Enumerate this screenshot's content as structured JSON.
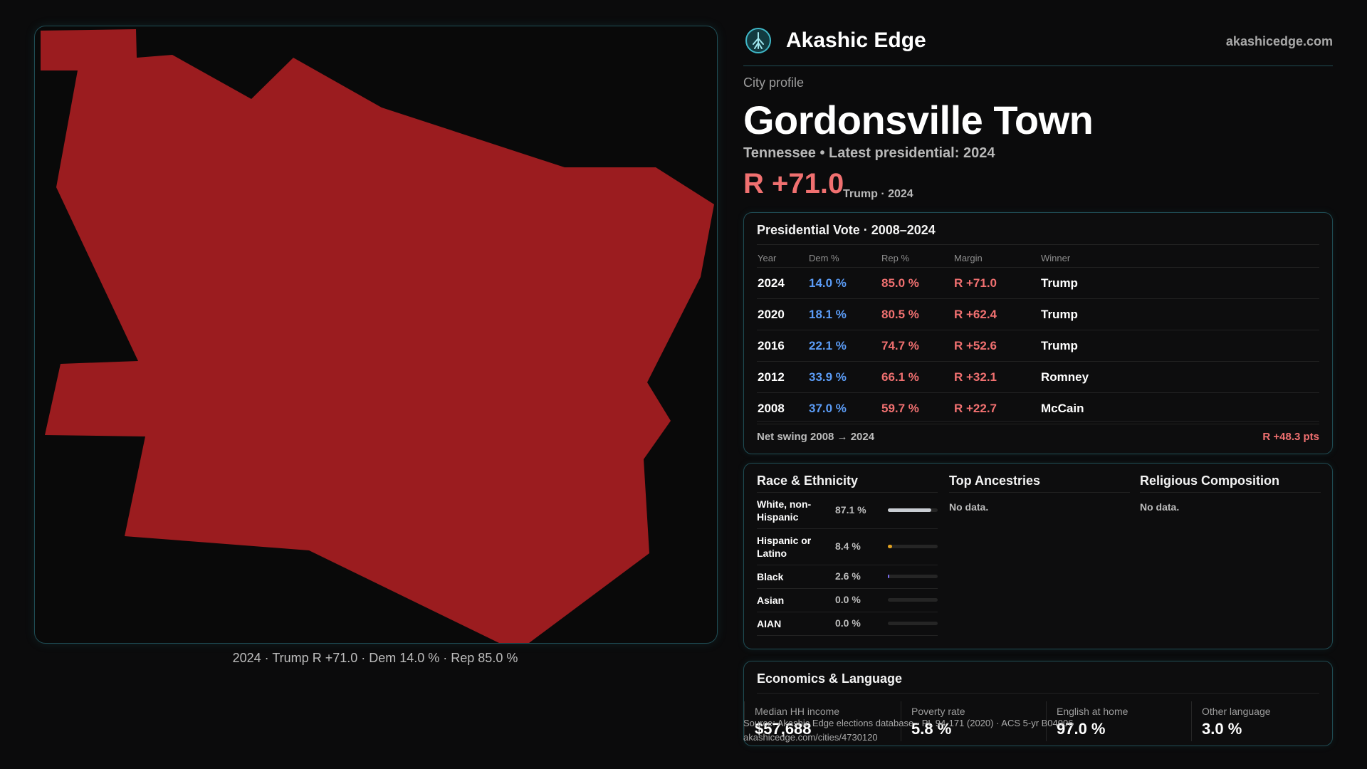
{
  "header": {
    "brand": "Akashic Edge",
    "site": "akashicedge.com",
    "logo_icon": "tree-globe-logo"
  },
  "profile": {
    "eyebrow": "City profile",
    "city": "Gordonsville Town",
    "subline": "Tennessee • Latest presidential: 2024",
    "margin": "R +71.0",
    "margin_note": "Trump · 2024"
  },
  "map": {
    "fill_color": "#9b1c1f",
    "caption": "2024 · Trump R +71.0 · Dem 14.0 % · Rep 85.0 %"
  },
  "vote": {
    "title": "Presidential Vote · 2008–2024",
    "columns": [
      "Year",
      "Dem %",
      "Rep %",
      "Margin",
      "Winner"
    ],
    "rows": [
      {
        "year": "2024",
        "dem": "14.0 %",
        "rep": "85.0 %",
        "margin": "R +71.0",
        "winner": "Trump"
      },
      {
        "year": "2020",
        "dem": "18.1 %",
        "rep": "80.5 %",
        "margin": "R +62.4",
        "winner": "Trump"
      },
      {
        "year": "2016",
        "dem": "22.1 %",
        "rep": "74.7 %",
        "margin": "R +52.6",
        "winner": "Trump"
      },
      {
        "year": "2012",
        "dem": "33.9 %",
        "rep": "66.1 %",
        "margin": "R +32.1",
        "winner": "Romney"
      },
      {
        "year": "2008",
        "dem": "37.0 %",
        "rep": "59.7 %",
        "margin": "R +22.7",
        "winner": "McCain"
      }
    ],
    "swing_label": "Net swing 2008 → 2024",
    "swing_value": "R +48.3 pts",
    "colors": {
      "dem": "#5b9cf6",
      "rep": "#f07070"
    }
  },
  "race": {
    "title": "Race & Ethnicity",
    "rows": [
      {
        "name": "White, non-Hispanic",
        "pct": "87.1 %",
        "value": 87.1,
        "color": "#c9cdd3"
      },
      {
        "name": "Hispanic or Latino",
        "pct": "8.4 %",
        "value": 8.4,
        "color": "#e0a020"
      },
      {
        "name": "Black",
        "pct": "2.6 %",
        "value": 2.6,
        "color": "#7a6cf0"
      },
      {
        "name": "Asian",
        "pct": "0.0 %",
        "value": 0.0,
        "color": "#3bb3a3"
      },
      {
        "name": "AIAN",
        "pct": "0.0 %",
        "value": 0.0,
        "color": "#c07040"
      }
    ]
  },
  "ancestry": {
    "title": "Top Ancestries",
    "empty": "No data."
  },
  "religion": {
    "title": "Religious Composition",
    "empty": "No data."
  },
  "economics": {
    "title": "Economics & Language",
    "items": [
      {
        "label": "Median HH income",
        "value": "$57,688"
      },
      {
        "label": "Poverty rate",
        "value": "5.8 %"
      },
      {
        "label": "English at home",
        "value": "97.0 %"
      },
      {
        "label": "Other language",
        "value": "3.0 %"
      }
    ]
  },
  "source": {
    "line1": "Source: Akashic Edge elections database · PL 94-171 (2020) · ACS 5-yr B04006",
    "line2": "akashicedge.com/cities/4730120"
  }
}
